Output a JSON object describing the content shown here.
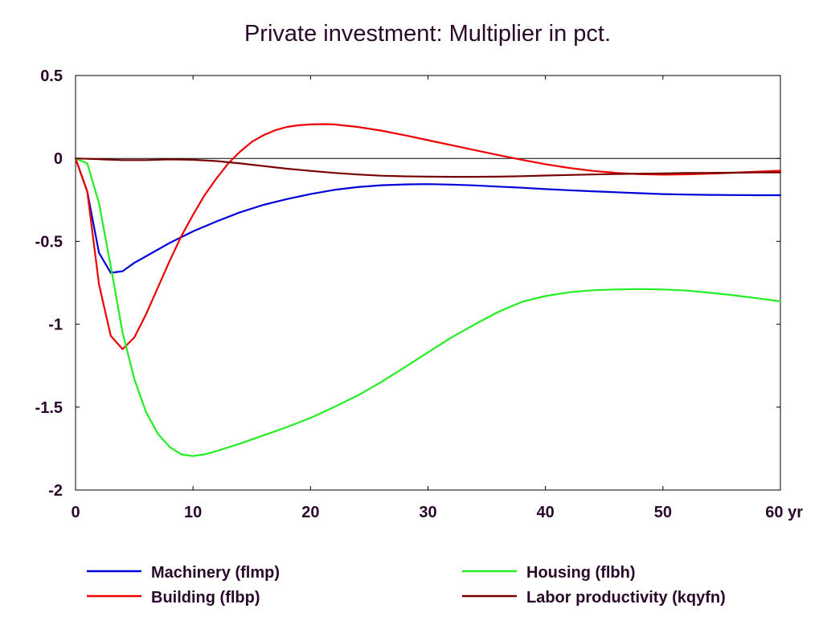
{
  "chart_data": {
    "type": "line",
    "title": "Private investment: Multiplier in pct.",
    "xlabel": "",
    "ylabel": "",
    "x_unit_label": "yr",
    "xlim": [
      0,
      60
    ],
    "ylim": [
      -2,
      0.5
    ],
    "x_ticks": [
      0,
      10,
      20,
      30,
      40,
      50,
      60
    ],
    "x_tick_labels": [
      "0",
      "10",
      "20",
      "30",
      "40",
      "50",
      "60 yr"
    ],
    "y_ticks": [
      0.5,
      0,
      -0.5,
      -1,
      -1.5,
      -2
    ],
    "y_tick_labels": [
      "0.5",
      "0",
      "-0.5",
      "-1",
      "-1.5",
      "-2"
    ],
    "zero_line": true,
    "grid": false,
    "legend_position": "bottom",
    "series": [
      {
        "name": "Machinery (flmp)",
        "color": "#0000dd",
        "x": [
          0,
          1,
          2,
          3,
          4,
          5,
          6,
          8,
          10,
          12,
          14,
          16,
          18,
          20,
          22,
          24,
          26,
          28,
          30,
          32,
          34,
          36,
          38,
          40,
          42,
          44,
          46,
          48,
          50,
          52,
          54,
          56,
          58,
          60
        ],
        "y": [
          0,
          -0.2,
          -0.57,
          -0.69,
          -0.68,
          -0.63,
          -0.59,
          -0.51,
          -0.44,
          -0.38,
          -0.325,
          -0.28,
          -0.245,
          -0.215,
          -0.19,
          -0.173,
          -0.162,
          -0.157,
          -0.155,
          -0.158,
          -0.163,
          -0.17,
          -0.177,
          -0.185,
          -0.192,
          -0.198,
          -0.204,
          -0.21,
          -0.215,
          -0.218,
          -0.22,
          -0.221,
          -0.222,
          -0.222
        ]
      },
      {
        "name": "Building (flbp)",
        "color": "#ee0000",
        "x": [
          0,
          1,
          2,
          3,
          4,
          5,
          6,
          7,
          8,
          9,
          10,
          11,
          12,
          13,
          14,
          15,
          16,
          17,
          18,
          19,
          20,
          21,
          22,
          24,
          26,
          28,
          30,
          32,
          34,
          36,
          38,
          40,
          42,
          44,
          46,
          48,
          50,
          52,
          54,
          56,
          58,
          60
        ],
        "y": [
          0,
          -0.2,
          -0.76,
          -1.07,
          -1.15,
          -1.08,
          -0.94,
          -0.78,
          -0.62,
          -0.47,
          -0.34,
          -0.22,
          -0.12,
          -0.03,
          0.04,
          0.1,
          0.14,
          0.17,
          0.19,
          0.2,
          0.205,
          0.207,
          0.205,
          0.19,
          0.168,
          0.14,
          0.11,
          0.08,
          0.05,
          0.02,
          -0.008,
          -0.035,
          -0.057,
          -0.075,
          -0.087,
          -0.095,
          -0.098,
          -0.096,
          -0.092,
          -0.086,
          -0.08,
          -0.074
        ]
      },
      {
        "name": "Housing (flbh)",
        "color": "#22ee22",
        "x": [
          0,
          1,
          2,
          3,
          4,
          5,
          6,
          7,
          8,
          9,
          10,
          11,
          12,
          14,
          16,
          18,
          20,
          22,
          24,
          26,
          28,
          30,
          32,
          34,
          36,
          38,
          40,
          42,
          44,
          46,
          48,
          50,
          52,
          54,
          56,
          58,
          60
        ],
        "y": [
          0,
          -0.03,
          -0.27,
          -0.65,
          -1.05,
          -1.33,
          -1.53,
          -1.66,
          -1.74,
          -1.785,
          -1.795,
          -1.785,
          -1.765,
          -1.72,
          -1.67,
          -1.62,
          -1.565,
          -1.5,
          -1.43,
          -1.35,
          -1.26,
          -1.17,
          -1.08,
          -1.0,
          -0.925,
          -0.865,
          -0.83,
          -0.807,
          -0.795,
          -0.79,
          -0.788,
          -0.79,
          -0.797,
          -0.81,
          -0.825,
          -0.843,
          -0.862
        ]
      },
      {
        "name": "Labor productivity (kqyfn)",
        "color": "#770000",
        "x": [
          0,
          2,
          4,
          6,
          8,
          10,
          12,
          14,
          16,
          18,
          20,
          22,
          24,
          26,
          28,
          30,
          32,
          34,
          36,
          38,
          40,
          42,
          44,
          46,
          48,
          50,
          52,
          54,
          56,
          58,
          60
        ],
        "y": [
          0,
          -0.005,
          -0.01,
          -0.01,
          -0.006,
          -0.008,
          -0.016,
          -0.03,
          -0.046,
          -0.062,
          -0.075,
          -0.087,
          -0.097,
          -0.104,
          -0.108,
          -0.11,
          -0.111,
          -0.111,
          -0.11,
          -0.107,
          -0.103,
          -0.1,
          -0.097,
          -0.094,
          -0.092,
          -0.09,
          -0.088,
          -0.087,
          -0.086,
          -0.085,
          -0.085
        ]
      }
    ]
  }
}
